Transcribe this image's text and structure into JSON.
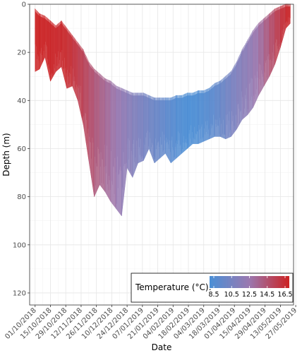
{
  "chart_data": {
    "type": "line",
    "xlabel": "Date",
    "ylabel": "Depth (m)",
    "y_reversed": true,
    "ylim": [
      0,
      125
    ],
    "y_ticks": [
      0,
      20,
      40,
      60,
      80,
      100,
      120
    ],
    "y_tick_labels": [
      "0",
      "20",
      "40",
      "60",
      "80",
      "100",
      "120"
    ],
    "xlim": [
      "2018-09-26",
      "2019-05-25"
    ],
    "x_ticks": [
      "2018-10-01",
      "2018-10-15",
      "2018-10-29",
      "2018-11-12",
      "2018-11-26",
      "2018-12-10",
      "2018-12-24",
      "2019-01-07",
      "2019-01-21",
      "2019-02-04",
      "2019-02-18",
      "2019-03-04",
      "2019-03-18",
      "2019-04-01",
      "2019-04-15",
      "2019-04-29",
      "2019-05-13",
      "2019-05-27"
    ],
    "x_tick_labels": [
      "01/10/2018",
      "15/10/2018",
      "29/10/2018",
      "12/11/2018",
      "26/11/2018",
      "10/12/2018",
      "24/12/2018",
      "07/01/2019",
      "21/01/2019",
      "04/02/2019",
      "18/02/2019",
      "04/03/2019",
      "18/03/2019",
      "01/04/2019",
      "15/04/2019",
      "29/04/2019",
      "13/05/2019",
      "27/05/2019"
    ],
    "grid": true,
    "legend": {
      "title": "Temperature (°C):",
      "placement": "bottom-right",
      "ticks": [
        "8.5",
        "10.5",
        "12.5",
        "14.5",
        "16.5"
      ],
      "range": [
        8.5,
        16.5
      ],
      "low_color": "#4a8fd6",
      "high_color": "#cc2222"
    },
    "series": [
      {
        "x": [
          "2018-10-01",
          "2018-10-05",
          "2018-10-10",
          "2018-10-15",
          "2018-10-20",
          "2018-10-25",
          "2018-10-30",
          "2018-11-04",
          "2018-11-09",
          "2018-11-14",
          "2018-11-19",
          "2018-11-24",
          "2018-11-29",
          "2018-12-04",
          "2018-12-09",
          "2018-12-14",
          "2018-12-19",
          "2018-12-24",
          "2018-12-29",
          "2019-01-03",
          "2019-01-08",
          "2019-01-13",
          "2019-01-18",
          "2019-01-23",
          "2019-01-28",
          "2019-02-02",
          "2019-02-07",
          "2019-02-12",
          "2019-02-17",
          "2019-02-22",
          "2019-02-27",
          "2019-03-04",
          "2019-03-09",
          "2019-03-14",
          "2019-03-19",
          "2019-03-24",
          "2019-03-29",
          "2019-04-03",
          "2019-04-08",
          "2019-04-13",
          "2019-04-18",
          "2019-04-23",
          "2019-04-28",
          "2019-05-03",
          "2019-05-08",
          "2019-05-13",
          "2019-05-18",
          "2019-05-22"
        ],
        "depth_min": [
          3,
          5,
          6,
          8,
          10,
          8,
          11,
          14,
          17,
          20,
          25,
          28,
          30,
          32,
          33,
          35,
          36,
          37,
          38,
          38,
          38,
          39,
          40,
          40,
          40,
          40,
          39,
          39,
          38,
          38,
          37,
          37,
          36,
          34,
          33,
          31,
          29,
          25,
          20,
          16,
          12,
          9,
          7,
          5,
          3,
          2,
          1,
          1
        ],
        "depth_max": [
          28,
          27,
          22,
          32,
          28,
          26,
          35,
          34,
          40,
          50,
          65,
          80,
          75,
          78,
          82,
          85,
          88,
          68,
          72,
          66,
          65,
          60,
          66,
          64,
          62,
          66,
          64,
          62,
          60,
          58,
          58,
          57,
          56,
          55,
          55,
          56,
          55,
          52,
          48,
          46,
          43,
          38,
          34,
          30,
          25,
          18,
          10,
          8
        ],
        "temperature": [
          16.5,
          16.4,
          16.4,
          16.3,
          16.3,
          16.2,
          16.1,
          15.8,
          15.4,
          15.0,
          14.6,
          14.1,
          13.7,
          13.3,
          12.9,
          12.5,
          12.1,
          11.7,
          11.3,
          11.0,
          10.7,
          10.4,
          10.2,
          9.9,
          9.6,
          9.3,
          9.0,
          8.8,
          8.6,
          8.6,
          8.8,
          9.0,
          9.2,
          9.5,
          9.9,
          10.3,
          10.7,
          11.1,
          11.5,
          11.8,
          12.2,
          12.7,
          13.3,
          14.1,
          14.8,
          15.5,
          16.1,
          16.4
        ]
      }
    ]
  }
}
